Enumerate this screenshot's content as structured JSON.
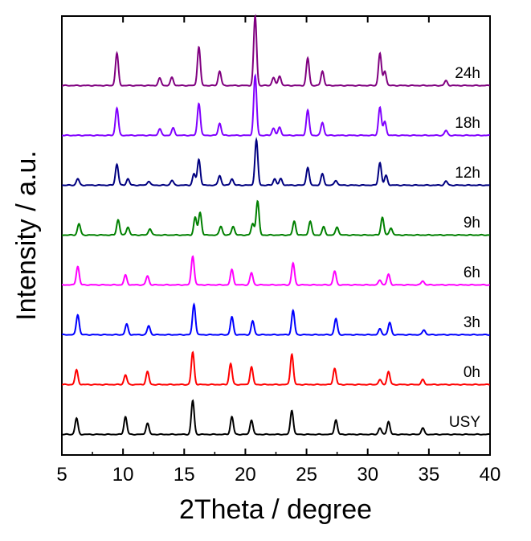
{
  "chart_data": {
    "type": "line",
    "xlabel": "2Theta / degree",
    "ylabel": "Intensity / a.u.",
    "xlim": [
      5,
      40
    ],
    "xticks": [
      "5",
      "10",
      "15",
      "20",
      "25",
      "30",
      "35",
      "40"
    ],
    "grid": false,
    "series": [
      {
        "name": "USY",
        "color": "#000000",
        "baseline": 0,
        "peaks": [
          [
            6.2,
            20
          ],
          [
            10.2,
            22
          ],
          [
            12.0,
            14
          ],
          [
            15.7,
            42
          ],
          [
            18.9,
            22
          ],
          [
            20.5,
            18
          ],
          [
            23.8,
            30
          ],
          [
            27.4,
            18
          ],
          [
            31.0,
            8
          ],
          [
            31.7,
            16
          ],
          [
            34.5,
            8
          ]
        ]
      },
      {
        "name": "0h",
        "color": "#ff0000",
        "baseline": 1,
        "peaks": [
          [
            6.2,
            18
          ],
          [
            10.2,
            12
          ],
          [
            12.0,
            16
          ],
          [
            15.7,
            40
          ],
          [
            18.8,
            26
          ],
          [
            20.5,
            22
          ],
          [
            23.8,
            38
          ],
          [
            27.3,
            20
          ],
          [
            31.0,
            6
          ],
          [
            31.7,
            16
          ],
          [
            34.5,
            6
          ]
        ]
      },
      {
        "name": "3h",
        "color": "#0000ff",
        "baseline": 2,
        "peaks": [
          [
            6.3,
            25
          ],
          [
            10.3,
            13
          ],
          [
            12.1,
            11
          ],
          [
            15.8,
            38
          ],
          [
            18.9,
            22
          ],
          [
            20.6,
            17
          ],
          [
            23.9,
            30
          ],
          [
            27.4,
            20
          ],
          [
            31.0,
            7
          ],
          [
            31.8,
            15
          ],
          [
            34.6,
            6
          ]
        ]
      },
      {
        "name": "6h",
        "color": "#ff00ff",
        "baseline": 3,
        "peaks": [
          [
            6.3,
            23
          ],
          [
            10.2,
            12
          ],
          [
            12.0,
            11
          ],
          [
            15.7,
            36
          ],
          [
            18.9,
            19
          ],
          [
            20.5,
            15
          ],
          [
            23.9,
            27
          ],
          [
            27.3,
            17
          ],
          [
            31.0,
            6
          ],
          [
            31.7,
            13
          ],
          [
            34.5,
            5
          ]
        ]
      },
      {
        "name": "9h",
        "color": "#008000",
        "baseline": 4,
        "peaks": [
          [
            6.4,
            14
          ],
          [
            9.6,
            19
          ],
          [
            10.4,
            10
          ],
          [
            12.2,
            8
          ],
          [
            15.9,
            22
          ],
          [
            16.3,
            28
          ],
          [
            18.0,
            11
          ],
          [
            19.0,
            11
          ],
          [
            20.6,
            14
          ],
          [
            21.0,
            42
          ],
          [
            24.0,
            17
          ],
          [
            25.3,
            17
          ],
          [
            26.4,
            10
          ],
          [
            27.5,
            10
          ],
          [
            31.2,
            22
          ],
          [
            31.9,
            9
          ]
        ]
      },
      {
        "name": "12h",
        "color": "#000080",
        "baseline": 5,
        "peaks": [
          [
            6.3,
            8
          ],
          [
            9.5,
            26
          ],
          [
            10.4,
            8
          ],
          [
            12.1,
            5
          ],
          [
            14.0,
            6
          ],
          [
            15.8,
            14
          ],
          [
            16.2,
            32
          ],
          [
            17.9,
            12
          ],
          [
            18.9,
            8
          ],
          [
            20.9,
            56
          ],
          [
            22.4,
            8
          ],
          [
            22.9,
            8
          ],
          [
            25.1,
            22
          ],
          [
            26.3,
            14
          ],
          [
            27.4,
            6
          ],
          [
            31.0,
            28
          ],
          [
            31.5,
            12
          ],
          [
            36.4,
            5
          ]
        ]
      },
      {
        "name": "18h",
        "color": "#8000ff",
        "baseline": 6,
        "peaks": [
          [
            9.5,
            34
          ],
          [
            13.0,
            8
          ],
          [
            14.1,
            9
          ],
          [
            16.2,
            40
          ],
          [
            17.9,
            15
          ],
          [
            20.8,
            74
          ],
          [
            22.3,
            9
          ],
          [
            22.8,
            10
          ],
          [
            25.1,
            31
          ],
          [
            26.3,
            16
          ],
          [
            31.0,
            35
          ],
          [
            31.4,
            17
          ],
          [
            36.4,
            6
          ]
        ]
      },
      {
        "name": "24h",
        "color": "#800080",
        "baseline": 7,
        "peaks": [
          [
            9.5,
            40
          ],
          [
            13.0,
            9
          ],
          [
            14.0,
            10
          ],
          [
            16.2,
            48
          ],
          [
            17.9,
            18
          ],
          [
            20.8,
            86
          ],
          [
            22.3,
            10
          ],
          [
            22.8,
            12
          ],
          [
            25.1,
            34
          ],
          [
            26.3,
            18
          ],
          [
            31.0,
            40
          ],
          [
            31.4,
            18
          ],
          [
            36.4,
            6
          ]
        ]
      }
    ]
  }
}
